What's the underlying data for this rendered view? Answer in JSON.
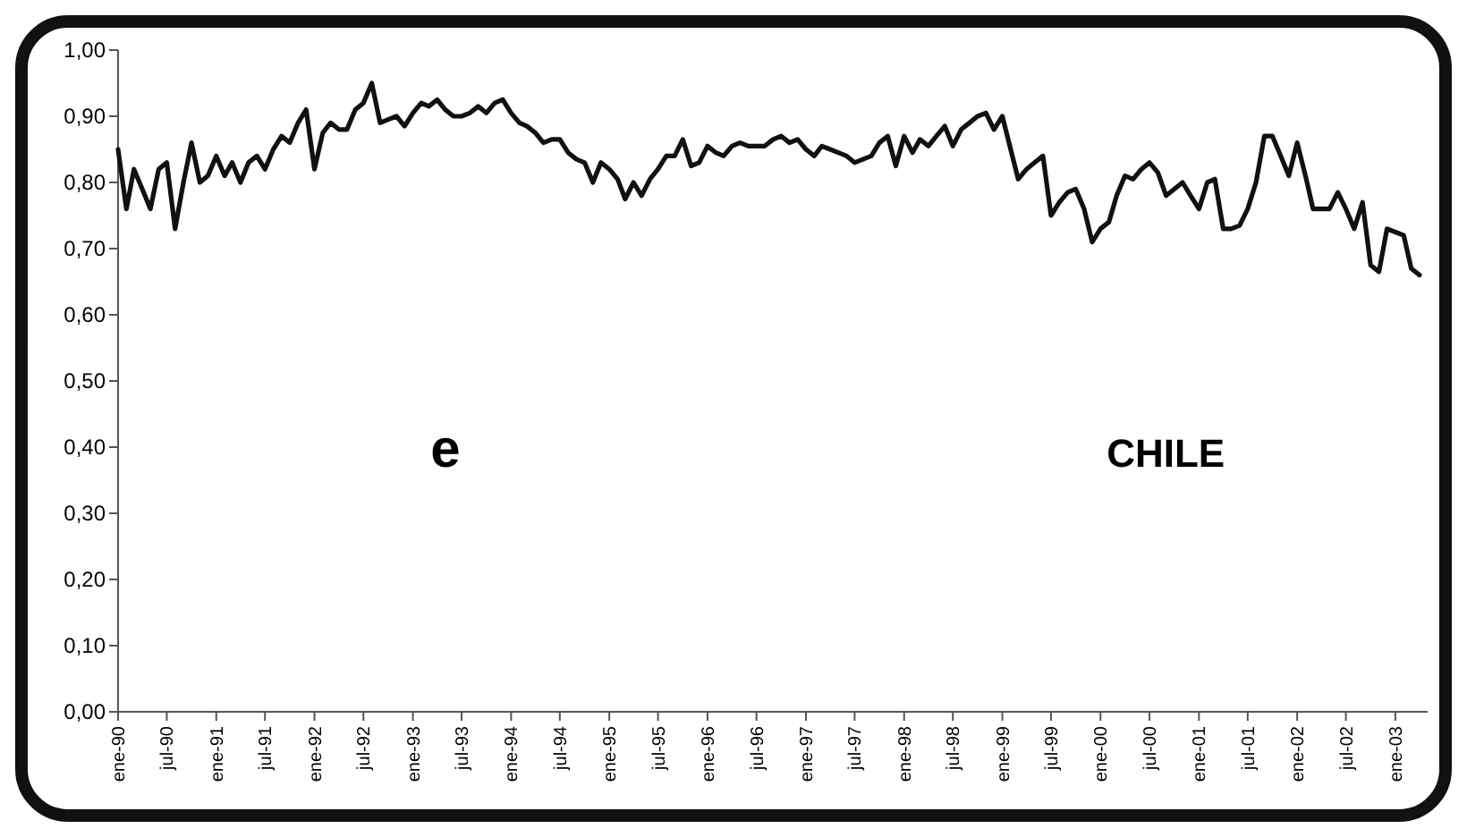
{
  "chart_data": {
    "type": "line",
    "annotations": [
      "e",
      "CHILE"
    ],
    "x": [
      "1990-01",
      "1990-02",
      "1990-03",
      "1990-04",
      "1990-05",
      "1990-06",
      "1990-07",
      "1990-08",
      "1990-09",
      "1990-10",
      "1990-11",
      "1990-12",
      "1991-01",
      "1991-02",
      "1991-03",
      "1991-04",
      "1991-05",
      "1991-06",
      "1991-07",
      "1991-08",
      "1991-09",
      "1991-10",
      "1991-11",
      "1991-12",
      "1992-01",
      "1992-02",
      "1992-03",
      "1992-04",
      "1992-05",
      "1992-06",
      "1992-07",
      "1992-08",
      "1992-09",
      "1992-10",
      "1992-11",
      "1992-12",
      "1993-01",
      "1993-02",
      "1993-03",
      "1993-04",
      "1993-05",
      "1993-06",
      "1993-07",
      "1993-08",
      "1993-09",
      "1993-10",
      "1993-11",
      "1993-12",
      "1994-01",
      "1994-02",
      "1994-03",
      "1994-04",
      "1994-05",
      "1994-06",
      "1994-07",
      "1994-08",
      "1994-09",
      "1994-10",
      "1994-11",
      "1994-12",
      "1995-01",
      "1995-02",
      "1995-03",
      "1995-04",
      "1995-05",
      "1995-06",
      "1995-07",
      "1995-08",
      "1995-09",
      "1995-10",
      "1995-11",
      "1995-12",
      "1996-01",
      "1996-02",
      "1996-03",
      "1996-04",
      "1996-05",
      "1996-06",
      "1996-07",
      "1996-08",
      "1996-09",
      "1996-10",
      "1996-11",
      "1996-12",
      "1997-01",
      "1997-02",
      "1997-03",
      "1997-04",
      "1997-05",
      "1997-06",
      "1997-07",
      "1997-08",
      "1997-09",
      "1997-10",
      "1997-11",
      "1997-12",
      "1998-01",
      "1998-02",
      "1998-03",
      "1998-04",
      "1998-05",
      "1998-06",
      "1998-07",
      "1998-08",
      "1998-09",
      "1998-10",
      "1998-11",
      "1998-12",
      "1999-01",
      "1999-02",
      "1999-03",
      "1999-04",
      "1999-05",
      "1999-06",
      "1999-07",
      "1999-08",
      "1999-09",
      "1999-10",
      "1999-11",
      "1999-12",
      "2000-01",
      "2000-02",
      "2000-03",
      "2000-04",
      "2000-05",
      "2000-06",
      "2000-07",
      "2000-08",
      "2000-09",
      "2000-10",
      "2000-11",
      "2000-12",
      "2001-01",
      "2001-02",
      "2001-03",
      "2001-04",
      "2001-05",
      "2001-06",
      "2001-07",
      "2001-08",
      "2001-09",
      "2001-10",
      "2001-11",
      "2001-12",
      "2002-01",
      "2002-02",
      "2002-03",
      "2002-04",
      "2002-05",
      "2002-06",
      "2002-07",
      "2002-08",
      "2002-09",
      "2002-10",
      "2002-11",
      "2002-12",
      "2003-01",
      "2003-02",
      "2003-03",
      "2003-04"
    ],
    "series": [
      {
        "color": "#111111",
        "values": [
          0.85,
          0.76,
          0.82,
          0.79,
          0.76,
          0.82,
          0.83,
          0.73,
          0.8,
          0.86,
          0.8,
          0.81,
          0.84,
          0.81,
          0.83,
          0.8,
          0.83,
          0.84,
          0.82,
          0.85,
          0.87,
          0.86,
          0.89,
          0.91,
          0.82,
          0.875,
          0.89,
          0.88,
          0.88,
          0.91,
          0.92,
          0.95,
          0.89,
          0.895,
          0.9,
          0.885,
          0.905,
          0.92,
          0.915,
          0.925,
          0.91,
          0.9,
          0.9,
          0.905,
          0.915,
          0.905,
          0.92,
          0.925,
          0.905,
          0.89,
          0.885,
          0.875,
          0.86,
          0.865,
          0.865,
          0.845,
          0.835,
          0.83,
          0.8,
          0.83,
          0.82,
          0.805,
          0.775,
          0.8,
          0.78,
          0.805,
          0.82,
          0.84,
          0.84,
          0.865,
          0.825,
          0.83,
          0.855,
          0.845,
          0.84,
          0.855,
          0.86,
          0.855,
          0.855,
          0.855,
          0.865,
          0.87,
          0.86,
          0.865,
          0.85,
          0.84,
          0.855,
          0.85,
          0.845,
          0.84,
          0.83,
          0.835,
          0.84,
          0.86,
          0.87,
          0.825,
          0.87,
          0.845,
          0.865,
          0.855,
          0.87,
          0.885,
          0.855,
          0.88,
          0.89,
          0.9,
          0.905,
          0.88,
          0.9,
          0.85,
          0.805,
          0.82,
          0.83,
          0.84,
          0.75,
          0.77,
          0.785,
          0.79,
          0.76,
          0.71,
          0.73,
          0.74,
          0.78,
          0.81,
          0.805,
          0.82,
          0.83,
          0.815,
          0.78,
          0.79,
          0.8,
          0.78,
          0.76,
          0.8,
          0.805,
          0.73,
          0.73,
          0.735,
          0.76,
          0.8,
          0.87,
          0.87,
          0.84,
          0.81,
          0.86,
          0.81,
          0.76,
          0.76,
          0.76,
          0.785,
          0.76,
          0.73,
          0.77,
          0.675,
          0.665,
          0.73,
          0.725,
          0.72,
          0.67,
          0.66
        ]
      }
    ],
    "xlim": [
      "1990-01",
      "2003-05"
    ],
    "xticks": [
      {
        "value": "1990-01",
        "label": "ene-90"
      },
      {
        "value": "1990-07",
        "label": "jul-90"
      },
      {
        "value": "1991-01",
        "label": "ene-91"
      },
      {
        "value": "1991-07",
        "label": "jul-91"
      },
      {
        "value": "1992-01",
        "label": "ene-92"
      },
      {
        "value": "1992-07",
        "label": "jul-92"
      },
      {
        "value": "1993-01",
        "label": "ene-93"
      },
      {
        "value": "1993-07",
        "label": "jul-93"
      },
      {
        "value": "1994-01",
        "label": "ene-94"
      },
      {
        "value": "1994-07",
        "label": "jul-94"
      },
      {
        "value": "1995-01",
        "label": "ene-95"
      },
      {
        "value": "1995-07",
        "label": "jul-95"
      },
      {
        "value": "1996-01",
        "label": "ene-96"
      },
      {
        "value": "1996-07",
        "label": "jul-96"
      },
      {
        "value": "1997-01",
        "label": "ene-97"
      },
      {
        "value": "1997-07",
        "label": "jul-97"
      },
      {
        "value": "1998-01",
        "label": "ene-98"
      },
      {
        "value": "1998-07",
        "label": "jul-98"
      },
      {
        "value": "1999-01",
        "label": "ene-99"
      },
      {
        "value": "1999-07",
        "label": "jul-99"
      },
      {
        "value": "2000-01",
        "label": "ene-00"
      },
      {
        "value": "2000-07",
        "label": "jul-00"
      },
      {
        "value": "2001-01",
        "label": "ene-01"
      },
      {
        "value": "2001-07",
        "label": "jul-01"
      },
      {
        "value": "2002-01",
        "label": "ene-02"
      },
      {
        "value": "2002-07",
        "label": "jul-02"
      },
      {
        "value": "2003-01",
        "label": "ene-03"
      }
    ],
    "ylim": [
      0,
      1
    ],
    "yticks": [
      {
        "value": 0,
        "label": "0,00"
      },
      {
        "value": 0.1,
        "label": "0,10"
      },
      {
        "value": 0.2,
        "label": "0,20"
      },
      {
        "value": 0.3,
        "label": "0,30"
      },
      {
        "value": 0.4,
        "label": "0,40"
      },
      {
        "value": 0.5,
        "label": "0,50"
      },
      {
        "value": 0.6,
        "label": "0,60"
      },
      {
        "value": 0.7,
        "label": "0,70"
      },
      {
        "value": 0.8,
        "label": "0,80"
      },
      {
        "value": 0.9,
        "label": "0,90"
      },
      {
        "value": 1,
        "label": "1,00"
      }
    ],
    "grid": false,
    "marker": "none",
    "line_style": "solid"
  }
}
